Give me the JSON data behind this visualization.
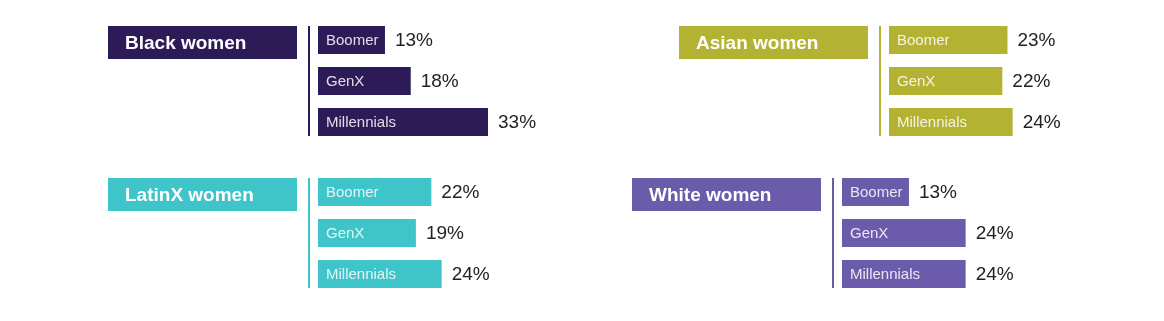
{
  "chart_data": [
    {
      "type": "bar",
      "orientation": "horizontal",
      "title": "Black women",
      "categories": [
        "Boomer",
        "GenX",
        "Millennials"
      ],
      "values": [
        13,
        18,
        33
      ],
      "color": "#2d1b57",
      "value_labels": [
        "13%",
        "18%",
        "33%"
      ]
    },
    {
      "type": "bar",
      "orientation": "horizontal",
      "title": "Asian women",
      "categories": [
        "Boomer",
        "GenX",
        "Millennials"
      ],
      "values": [
        23,
        22,
        24
      ],
      "color": "#b4b232",
      "value_labels": [
        "23%",
        "22%",
        "24%"
      ]
    },
    {
      "type": "bar",
      "orientation": "horizontal",
      "title": "LatinX women",
      "categories": [
        "Boomer",
        "GenX",
        "Millennials"
      ],
      "values": [
        22,
        19,
        24
      ],
      "color": "#3ec4c9",
      "value_labels": [
        "22%",
        "19%",
        "24%"
      ]
    },
    {
      "type": "bar",
      "orientation": "horizontal",
      "title": "White women",
      "categories": [
        "Boomer",
        "GenX",
        "Millennials"
      ],
      "values": [
        13,
        24,
        24
      ],
      "color": "#6b5bab",
      "value_labels": [
        "13%",
        "24%",
        "24%"
      ]
    }
  ]
}
